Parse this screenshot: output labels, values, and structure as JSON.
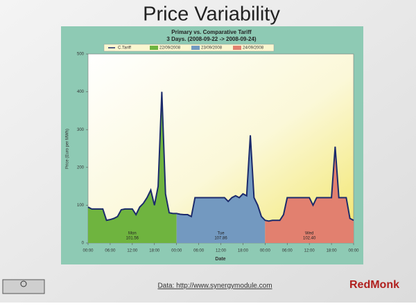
{
  "slide": {
    "title": "Price Variability",
    "footer": "Data: http://www.synergymodule.com",
    "logo": "RedMonk"
  },
  "chart_data": {
    "type": "area",
    "title": "Primary vs. Comparative Tariff",
    "subtitle": "3 Days. (2008-09-22 -> 2008-09-24)",
    "x_label": "Date",
    "y_label": "Price (Euro per MWh)",
    "x": [
      0,
      1,
      2,
      3,
      4,
      5,
      6,
      7,
      8,
      9,
      10,
      11,
      12,
      13,
      14,
      15,
      16,
      17,
      18,
      19,
      20,
      21,
      22,
      23,
      24,
      25,
      26,
      27,
      28,
      29,
      30,
      31,
      32,
      33,
      34,
      35,
      36,
      37,
      38,
      39,
      40,
      41,
      42,
      43,
      44,
      45,
      46,
      47,
      48,
      49,
      50,
      51,
      52,
      53,
      54,
      55,
      56,
      57,
      58,
      59,
      60,
      61,
      62,
      63,
      64,
      65,
      66,
      67,
      68,
      69,
      70,
      71,
      72
    ],
    "xlim": [
      0,
      72
    ],
    "xticks": [
      {
        "value": 0,
        "label": "00:00"
      },
      {
        "value": 6,
        "label": "06:00"
      },
      {
        "value": 12,
        "label": "12:00"
      },
      {
        "value": 18,
        "label": "18:00"
      },
      {
        "value": 24,
        "label": "00:00"
      },
      {
        "value": 30,
        "label": "06:00"
      },
      {
        "value": 36,
        "label": "12:00"
      },
      {
        "value": 42,
        "label": "18:00"
      },
      {
        "value": 48,
        "label": "00:00"
      },
      {
        "value": 54,
        "label": "06:00"
      },
      {
        "value": 60,
        "label": "12:00"
      },
      {
        "value": 66,
        "label": "18:00"
      },
      {
        "value": 72,
        "label": "00:00"
      }
    ],
    "ylim": [
      0,
      500
    ],
    "yticks": [
      0,
      100,
      200,
      300,
      400,
      500
    ],
    "series": [
      {
        "name": "C.Tariff",
        "type": "line",
        "color": "#1b2a6b",
        "values": [
          95,
          90,
          90,
          90,
          90,
          60,
          62,
          65,
          70,
          88,
          90,
          90,
          90,
          75,
          95,
          105,
          120,
          140,
          100,
          150,
          400,
          130,
          80,
          78,
          78,
          76,
          75,
          75,
          70,
          120,
          120,
          120,
          120,
          120,
          120,
          120,
          120,
          120,
          110,
          120,
          125,
          120,
          130,
          125,
          285,
          120,
          100,
          70,
          60,
          58,
          60,
          60,
          60,
          75,
          120,
          120,
          120,
          120,
          120,
          120,
          120,
          100,
          120,
          120,
          120,
          120,
          120,
          255,
          120,
          120,
          120,
          65,
          60
        ]
      },
      {
        "name": "22/09/2008",
        "type": "area",
        "color": "#6fb43f",
        "label": "Mon",
        "value_label": "101.56",
        "values": [
          95,
          90,
          90,
          90,
          90,
          60,
          62,
          65,
          70,
          88,
          90,
          90,
          90,
          75,
          95,
          105,
          120,
          140,
          100,
          150,
          400,
          130,
          80,
          78,
          78,
          null,
          null,
          null,
          null,
          null,
          null,
          null,
          null,
          null,
          null,
          null,
          null,
          null,
          null,
          null,
          null,
          null,
          null,
          null,
          null,
          null,
          null,
          null,
          null,
          null,
          null,
          null,
          null,
          null,
          null,
          null,
          null,
          null,
          null,
          null,
          null,
          null,
          null,
          null,
          null,
          null,
          null,
          null,
          null,
          null,
          null,
          null,
          null
        ]
      },
      {
        "name": "23/09/2008",
        "type": "area",
        "color": "#7399c0",
        "label": "Tue",
        "value_label": "107.86",
        "values": [
          null,
          null,
          null,
          null,
          null,
          null,
          null,
          null,
          null,
          null,
          null,
          null,
          null,
          null,
          null,
          null,
          null,
          null,
          null,
          null,
          null,
          null,
          null,
          null,
          78,
          76,
          75,
          75,
          70,
          120,
          120,
          120,
          120,
          120,
          120,
          120,
          120,
          120,
          110,
          120,
          125,
          120,
          130,
          125,
          285,
          120,
          100,
          70,
          60,
          null,
          null,
          null,
          null,
          null,
          null,
          null,
          null,
          null,
          null,
          null,
          null,
          null,
          null,
          null,
          null,
          null,
          null,
          null,
          null,
          null,
          null,
          null,
          null
        ]
      },
      {
        "name": "24/09/2008",
        "type": "area",
        "color": "#e2806f",
        "label": "Wed",
        "value_label": "102.40",
        "values": [
          null,
          null,
          null,
          null,
          null,
          null,
          null,
          null,
          null,
          null,
          null,
          null,
          null,
          null,
          null,
          null,
          null,
          null,
          null,
          null,
          null,
          null,
          null,
          null,
          null,
          null,
          null,
          null,
          null,
          null,
          null,
          null,
          null,
          null,
          null,
          null,
          null,
          null,
          null,
          null,
          null,
          null,
          null,
          null,
          null,
          null,
          null,
          null,
          60,
          58,
          60,
          60,
          60,
          75,
          120,
          120,
          120,
          120,
          120,
          120,
          120,
          100,
          120,
          120,
          120,
          120,
          120,
          255,
          120,
          120,
          120,
          65,
          60
        ]
      }
    ]
  }
}
